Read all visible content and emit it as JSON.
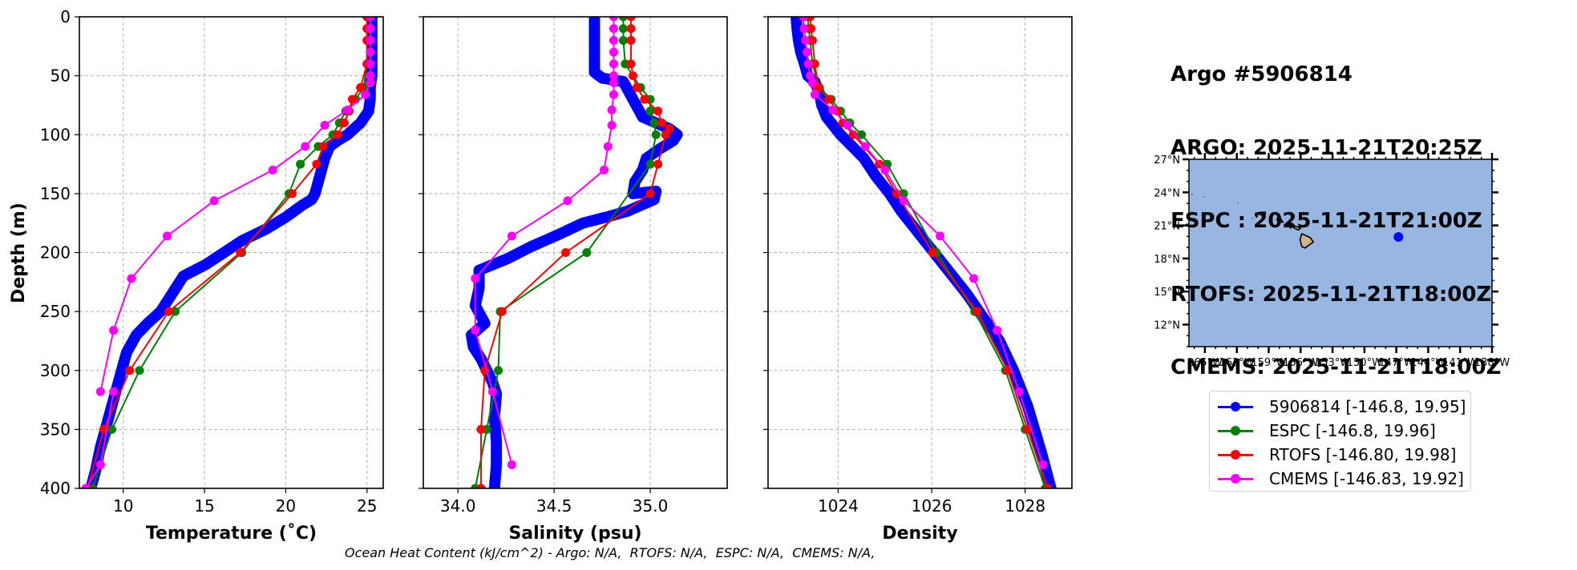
{
  "title": {
    "lines": [
      "Argo #5906814",
      "ARGO: 2025-11-21T20:25Z",
      "ESPC : 2025-11-21T21:00Z",
      "RTOFS: 2025-11-21T18:00Z",
      "CMEMS: 2025-11-21T18:00Z"
    ]
  },
  "footer": {
    "ohc_text": "Ocean Heat Content (kJ/cm^2) - Argo: N/A,  RTOFS: N/A,  ESPC: N/A,  CMEMS: N/A,"
  },
  "legend": {
    "items": [
      {
        "label": "5906814 [-146.8, 19.95]",
        "color": "#0000ff"
      },
      {
        "label": "ESPC [-146.8, 19.96]",
        "color": "#008000"
      },
      {
        "label": "RTOFS [-146.80, 19.98]",
        "color": "#ff0000"
      },
      {
        "label": "CMEMS [-146.83, 19.92]",
        "color": "#ff00ff"
      }
    ]
  },
  "colors": {
    "argo": "#0000ff",
    "espc": "#008000",
    "rtofs": "#ff0000",
    "cmems": "#ff00ff",
    "ocean": "#97b6e1",
    "land": "#d2b48c",
    "grid": "#b0b0b0"
  },
  "chart_data": [
    {
      "type": "line",
      "panel": "temperature",
      "xlabel": "Temperature (˚C)",
      "ylabel": "Depth (m)",
      "xlim": [
        7.3,
        26.0
      ],
      "ylim": [
        400,
        0
      ],
      "xticks": [
        10,
        15,
        20,
        25
      ],
      "xtick_labels": [
        "10",
        "15",
        "20",
        "25"
      ],
      "yticks": [
        0,
        50,
        100,
        150,
        200,
        250,
        300,
        350,
        400
      ],
      "ytick_labels": [
        "0",
        "50",
        "100",
        "150",
        "200",
        "250",
        "300",
        "350",
        "400"
      ],
      "grid": true,
      "series": [
        {
          "name": "5906814",
          "key": "argo",
          "dense": true,
          "x": [
            25.3,
            25.3,
            25.3,
            25.3,
            25.3,
            25.3,
            25.2,
            25.2,
            25.1,
            24.6,
            23.8,
            23.2,
            22.7,
            22.4,
            22.2,
            22.0,
            21.8,
            21.6,
            21.0,
            20.0,
            18.8,
            17.3,
            16.2,
            15.1,
            13.7,
            13.0,
            12.3,
            11.5,
            10.8,
            10.2,
            9.9,
            9.6,
            9.3,
            9.0,
            8.6,
            8.3,
            8.0
          ],
          "y": [
            0,
            10,
            20,
            30,
            40,
            50,
            60,
            70,
            80,
            90,
            100,
            105,
            110,
            120,
            130,
            140,
            150,
            155,
            160,
            170,
            180,
            190,
            200,
            210,
            220,
            235,
            250,
            260,
            270,
            285,
            300,
            315,
            330,
            345,
            365,
            385,
            400
          ]
        },
        {
          "name": "ESPC",
          "key": "espc",
          "x": [
            25.0,
            25.0,
            25.0,
            25.0,
            24.8,
            24.3,
            23.7,
            23.3,
            22.9,
            22.0,
            20.9,
            20.2,
            17.3,
            13.2,
            11.0,
            9.3,
            8.1
          ],
          "y": [
            0,
            10,
            20,
            40,
            60,
            70,
            80,
            90,
            100,
            110,
            125,
            150,
            200,
            250,
            300,
            350,
            400
          ]
        },
        {
          "name": "RTOFS",
          "key": "rtofs",
          "x": [
            25.0,
            25.0,
            25.0,
            25.0,
            24.6,
            24.1,
            23.9,
            23.6,
            23.2,
            22.3,
            21.9,
            20.4,
            17.2,
            12.8,
            10.4,
            8.8,
            7.8
          ],
          "y": [
            0,
            10,
            20,
            40,
            60,
            70,
            80,
            90,
            100,
            110,
            125,
            150,
            200,
            250,
            300,
            350,
            400
          ]
        },
        {
          "name": "CMEMS",
          "key": "cmems",
          "x": [
            25.2,
            25.2,
            25.2,
            25.2,
            25.2,
            25.2,
            25.2,
            24.9,
            23.8,
            22.4,
            21.2,
            19.2,
            15.6,
            12.7,
            10.5,
            9.4,
            8.6
          ],
          "y": [
            0,
            10,
            20,
            30,
            40,
            50,
            56,
            66,
            79,
            92,
            110,
            130,
            156,
            186,
            222,
            266,
            318
          ]
        },
        {
          "name": "CMEMS-tail",
          "key": "cmems",
          "x": [
            9.4,
            8.6,
            7.7
          ],
          "y": [
            318,
            380,
            400
          ]
        }
      ]
    },
    {
      "type": "line",
      "panel": "salinity",
      "xlabel": "Salinity (psu)",
      "xlim": [
        33.82,
        35.4
      ],
      "ylim": [
        400,
        0
      ],
      "xticks": [
        34.0,
        34.5,
        35.0
      ],
      "xtick_labels": [
        "34.0",
        "34.5",
        "35.0"
      ],
      "yticks": [
        0,
        50,
        100,
        150,
        200,
        250,
        300,
        350,
        400
      ],
      "grid": true,
      "series": [
        {
          "name": "5906814",
          "key": "argo",
          "dense": true,
          "x": [
            34.71,
            34.71,
            34.71,
            34.71,
            34.71,
            34.71,
            34.75,
            34.86,
            34.91,
            34.96,
            35.1,
            35.14,
            35.12,
            35.05,
            34.98,
            34.96,
            34.92,
            34.91,
            35.03,
            35.02,
            34.95,
            34.88,
            34.77,
            34.65,
            34.52,
            34.38,
            34.26,
            34.11,
            34.11,
            34.09,
            34.14,
            34.07,
            34.08,
            34.12,
            34.15,
            34.18,
            34.2,
            34.19,
            34.2,
            34.2,
            34.19
          ],
          "y": [
            0,
            10,
            20,
            30,
            40,
            47,
            52,
            55,
            70,
            85,
            95,
            100,
            105,
            112,
            120,
            130,
            140,
            150,
            148,
            155,
            160,
            165,
            170,
            175,
            185,
            195,
            205,
            215,
            230,
            245,
            260,
            270,
            280,
            290,
            300,
            310,
            320,
            340,
            360,
            380,
            400
          ]
        },
        {
          "name": "ESPC",
          "key": "espc",
          "x": [
            34.86,
            34.86,
            34.86,
            34.87,
            34.95,
            35.0,
            35.0,
            35.02,
            35.03,
            35.0,
            34.67,
            34.22,
            34.21,
            34.15,
            34.09
          ],
          "y": [
            0,
            10,
            20,
            40,
            60,
            70,
            80,
            90,
            100,
            125,
            200,
            250,
            300,
            350,
            400
          ]
        },
        {
          "name": "RTOFS",
          "key": "rtofs",
          "x": [
            34.9,
            34.9,
            34.9,
            34.9,
            34.91,
            34.93,
            34.97,
            35.04,
            35.06,
            35.1,
            35.08,
            35.04,
            35.0,
            34.56,
            34.23,
            34.14,
            34.12,
            34.12
          ],
          "y": [
            0,
            10,
            20,
            40,
            50,
            60,
            70,
            80,
            90,
            95,
            100,
            125,
            150,
            200,
            250,
            300,
            350,
            400
          ]
        },
        {
          "name": "CMEMS",
          "key": "cmems",
          "x": [
            34.81,
            34.81,
            34.81,
            34.81,
            34.81,
            34.81,
            34.81,
            34.81,
            34.8,
            34.8,
            34.78,
            34.76,
            34.57,
            34.28,
            34.09,
            34.09,
            34.18,
            34.28
          ],
          "y": [
            0,
            10,
            20,
            30,
            40,
            50,
            56,
            66,
            79,
            92,
            110,
            130,
            156,
            186,
            222,
            266,
            318,
            380
          ]
        }
      ]
    },
    {
      "type": "line",
      "panel": "density",
      "xlabel": "Density",
      "xlim": [
        1022.5,
        1029.0
      ],
      "ylim": [
        400,
        0
      ],
      "xticks": [
        1024,
        1026,
        1028
      ],
      "xtick_labels": [
        "1024",
        "1026",
        "1028"
      ],
      "yticks": [
        0,
        50,
        100,
        150,
        200,
        250,
        300,
        350,
        400
      ],
      "grid": true,
      "series": [
        {
          "name": "5906814",
          "key": "argo",
          "dense": true,
          "x": [
            1023.1,
            1023.12,
            1023.15,
            1023.2,
            1023.28,
            1023.35,
            1023.5,
            1023.6,
            1023.65,
            1023.75,
            1024.05,
            1024.3,
            1024.55,
            1024.8,
            1025.1,
            1025.35,
            1025.65,
            1026.05,
            1026.35,
            1026.75,
            1027.1,
            1027.45,
            1027.75,
            1028.05,
            1028.35,
            1028.55
          ],
          "y": [
            0,
            10,
            20,
            30,
            40,
            50,
            55,
            65,
            75,
            85,
            100,
            110,
            120,
            135,
            150,
            165,
            180,
            200,
            215,
            235,
            255,
            275,
            300,
            330,
            370,
            400
          ]
        },
        {
          "name": "ESPC",
          "key": "espc",
          "x": [
            1023.35,
            1023.37,
            1023.4,
            1023.45,
            1023.6,
            1023.85,
            1024.05,
            1024.25,
            1024.5,
            1025.05,
            1025.4,
            1026.1,
            1026.92,
            1027.58,
            1028.0,
            1028.43
          ],
          "y": [
            0,
            10,
            20,
            40,
            60,
            70,
            80,
            90,
            100,
            125,
            150,
            200,
            250,
            300,
            350,
            400
          ]
        },
        {
          "name": "RTOFS",
          "key": "rtofs",
          "x": [
            1023.4,
            1023.42,
            1023.45,
            1023.5,
            1023.58,
            1023.8,
            1023.98,
            1024.1,
            1024.32,
            1024.88,
            1025.25,
            1026.02,
            1026.97,
            1027.63,
            1028.05,
            1028.48
          ],
          "y": [
            0,
            10,
            20,
            40,
            60,
            70,
            80,
            90,
            100,
            125,
            150,
            200,
            250,
            300,
            350,
            400
          ]
        },
        {
          "name": "CMEMS",
          "key": "cmems",
          "x": [
            1023.25,
            1023.27,
            1023.3,
            1023.33,
            1023.36,
            1023.4,
            1023.45,
            1023.5,
            1023.88,
            1024.2,
            1024.58,
            1025.0,
            1025.4,
            1026.18,
            1026.9,
            1027.4,
            1027.87,
            1028.38
          ],
          "y": [
            0,
            10,
            20,
            30,
            40,
            50,
            56,
            66,
            79,
            92,
            110,
            130,
            156,
            186,
            222,
            266,
            318,
            380
          ]
        }
      ]
    },
    {
      "type": "scatter",
      "panel": "map",
      "xlim": [
        -166.5,
        -138.0
      ],
      "ylim": [
        10.0,
        27.0
      ],
      "xticks": [
        -165,
        -162,
        -159,
        -156,
        -153,
        -150,
        -147,
        -144,
        -141,
        -138
      ],
      "xtick_labels": [
        "165°W",
        "162°W",
        "159°W",
        "156°W",
        "153°W",
        "150°W",
        "147°W",
        "144°W",
        "141°W",
        "138°W"
      ],
      "yticks": [
        12,
        15,
        18,
        21,
        24,
        27
      ],
      "ytick_labels": [
        "12°N",
        "15°N",
        "18°N",
        "21°N",
        "24°N",
        "27°N"
      ],
      "points": [
        {
          "name": "5906814",
          "lon": -146.8,
          "lat": 19.95
        }
      ],
      "islands": [
        {
          "name": "hawaii",
          "poly": [
            [
              -155.9,
              20.25
            ],
            [
              -155.1,
              19.9
            ],
            [
              -154.8,
              19.5
            ],
            [
              -155.6,
              18.95
            ],
            [
              -155.9,
              19.1
            ],
            [
              -156.05,
              19.7
            ]
          ]
        },
        {
          "name": "maui",
          "poly": [
            [
              -156.7,
              20.95
            ],
            [
              -156.4,
              20.9
            ],
            [
              -156.0,
              20.75
            ],
            [
              -156.2,
              20.58
            ],
            [
              -156.5,
              20.72
            ],
            [
              -156.65,
              20.78
            ]
          ]
        },
        {
          "name": "molokai",
          "poly": [
            [
              -157.3,
              21.2
            ],
            [
              -156.75,
              21.18
            ],
            [
              -156.75,
              21.05
            ],
            [
              -157.25,
              21.1
            ]
          ]
        },
        {
          "name": "lanai",
          "poly": [
            [
              -157.0,
              20.9
            ],
            [
              -156.85,
              20.85
            ],
            [
              -156.95,
              20.75
            ]
          ]
        },
        {
          "name": "oahu",
          "poly": [
            [
              -158.25,
              21.58
            ],
            [
              -157.9,
              21.65
            ],
            [
              -157.65,
              21.3
            ],
            [
              -158.1,
              21.3
            ]
          ]
        },
        {
          "name": "kauai",
          "poly": [
            [
              -159.8,
              22.2
            ],
            [
              -159.3,
              22.2
            ],
            [
              -159.35,
              21.9
            ],
            [
              -159.75,
              21.95
            ]
          ]
        },
        {
          "name": "niihau",
          "poly": [
            [
              -160.25,
              21.95
            ],
            [
              -160.05,
              21.9
            ],
            [
              -160.15,
              21.75
            ]
          ]
        }
      ]
    }
  ]
}
